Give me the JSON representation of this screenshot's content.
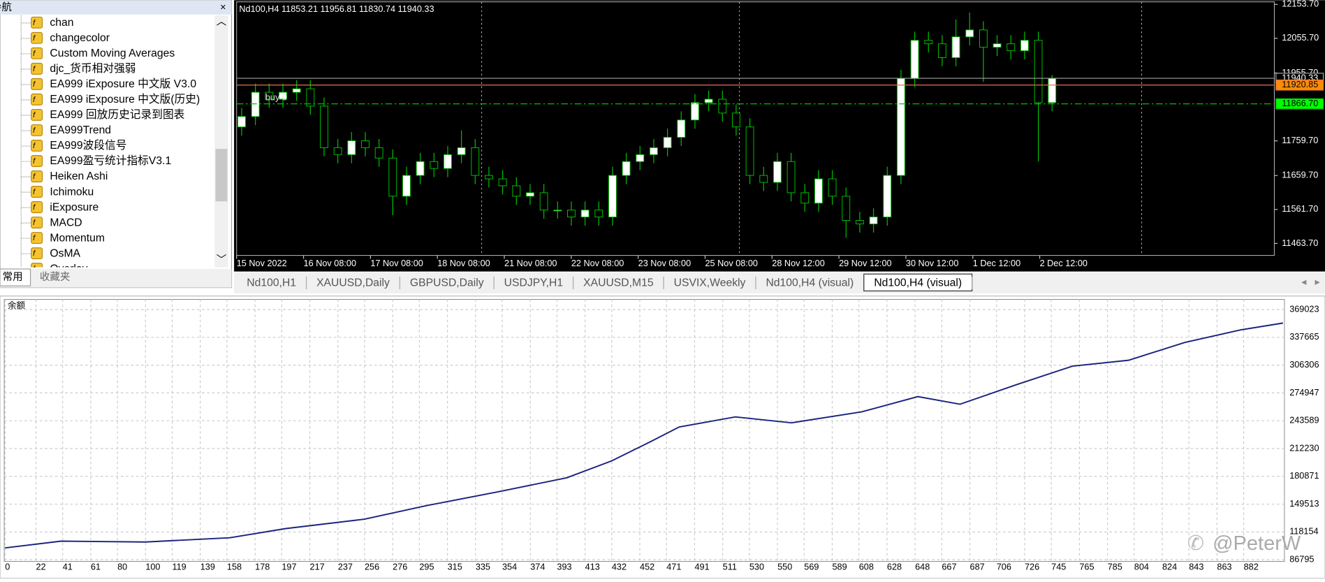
{
  "navigator": {
    "title": "导航",
    "items": [
      "chan",
      "changecolor",
      "Custom Moving Averages",
      "djc_货币相对强弱",
      "EA999 iExposure 中文版  V3.0",
      "EA999 iExposure 中文版(历史)",
      "EA999 回放历史记录到图表",
      "EA999Trend",
      "EA999波段信号",
      "EA999盈亏统计指标V3.1",
      "Heiken Ashi",
      "Ichimoku",
      "iExposure",
      "MACD",
      "Momentum",
      "OsMA",
      "Overlay"
    ],
    "tabs": [
      "常用",
      "收藏夹"
    ]
  },
  "chart_tabs": [
    "Nd100,H1",
    "XAUUSD,Daily",
    "GBPUSD,Daily",
    "USDJPY,H1",
    "XAUUSD,M15",
    "USVIX,Weekly",
    "Nd100,H4 (visual)",
    "Nd100,H4 (visual)"
  ],
  "watermark": "@PeterW",
  "chart_data": [
    {
      "type": "candlestick",
      "title": "Nd100,H4  11853.21 11956.81 11830.74 11940.33",
      "order_label": "buy 0",
      "up_color": "#ffffff",
      "down_color": "#000000",
      "wick_color": "#00c000",
      "ylim": [
        11429,
        12161
      ],
      "yticks": [
        {
          "value": 12153.7,
          "label": "12153.70"
        },
        {
          "value": 12055.7,
          "label": "12055.70"
        },
        {
          "value": 11955.7,
          "label": "11955.70"
        },
        {
          "value": 11759.7,
          "label": "11759.70"
        },
        {
          "value": 11659.7,
          "label": "11659.70"
        },
        {
          "value": 11561.7,
          "label": "11561.70"
        },
        {
          "value": 11463.7,
          "label": "11463.70"
        }
      ],
      "x_labels": [
        "15 Nov 2022",
        "16 Nov 08:00",
        "17 Nov 08:00",
        "18 Nov 08:00",
        "21 Nov 08:00",
        "22 Nov 08:00",
        "23 Nov 08:00",
        "25 Nov 08:00",
        "28 Nov 12:00",
        "29 Nov 12:00",
        "30 Nov 12:00",
        "1 Dec 12:00",
        "2 Dec 12:00"
      ],
      "levels": [
        {
          "value": 11940.33,
          "label": "11940.33",
          "color": "#a0a0a0",
          "label_bg": "#000000"
        },
        {
          "value": 11920.85,
          "label": "11920.85",
          "color": "#e07050",
          "label_bg": "#ff8c00"
        },
        {
          "value": 11866.7,
          "label": "11866.70",
          "color": "#00c000",
          "label_bg": "#00ff00"
        }
      ],
      "candles": [
        [
          11800,
          11855,
          11775,
          11830
        ],
        [
          11830,
          11925,
          11805,
          11900
        ],
        [
          11900,
          11925,
          11855,
          11880
        ],
        [
          11880,
          11925,
          11855,
          11900
        ],
        [
          11900,
          11935,
          11875,
          11910
        ],
        [
          11910,
          11935,
          11835,
          11860
        ],
        [
          11860,
          11885,
          11715,
          11740
        ],
        [
          11740,
          11765,
          11695,
          11720
        ],
        [
          11720,
          11785,
          11695,
          11760
        ],
        [
          11760,
          11785,
          11715,
          11740
        ],
        [
          11740,
          11765,
          11685,
          11710
        ],
        [
          11710,
          11735,
          11545,
          11600
        ],
        [
          11600,
          11685,
          11575,
          11660
        ],
        [
          11660,
          11725,
          11635,
          11700
        ],
        [
          11700,
          11725,
          11655,
          11680
        ],
        [
          11680,
          11745,
          11655,
          11720
        ],
        [
          11720,
          11790,
          11695,
          11740
        ],
        [
          11740,
          11765,
          11635,
          11660
        ],
        [
          11660,
          11685,
          11625,
          11650
        ],
        [
          11650,
          11675,
          11605,
          11630
        ],
        [
          11630,
          11655,
          11575,
          11600
        ],
        [
          11600,
          11635,
          11575,
          11610
        ],
        [
          11610,
          11635,
          11535,
          11560
        ],
        [
          11560,
          11585,
          11535,
          11560
        ],
        [
          11560,
          11585,
          11515,
          11540
        ],
        [
          11540,
          11585,
          11515,
          11560
        ],
        [
          11560,
          11585,
          11515,
          11540
        ],
        [
          11540,
          11685,
          11515,
          11660
        ],
        [
          11660,
          11725,
          11635,
          11700
        ],
        [
          11700,
          11745,
          11675,
          11720
        ],
        [
          11720,
          11765,
          11695,
          11740
        ],
        [
          11740,
          11795,
          11715,
          11770
        ],
        [
          11770,
          11845,
          11745,
          11820
        ],
        [
          11820,
          11895,
          11795,
          11870
        ],
        [
          11870,
          11905,
          11845,
          11880
        ],
        [
          11880,
          11905,
          11815,
          11840
        ],
        [
          11840,
          11865,
          11775,
          11800
        ],
        [
          11800,
          11825,
          11635,
          11660
        ],
        [
          11660,
          11685,
          11615,
          11640
        ],
        [
          11640,
          11725,
          11615,
          11700
        ],
        [
          11700,
          11725,
          11585,
          11610
        ],
        [
          11610,
          11635,
          11555,
          11580
        ],
        [
          11580,
          11675,
          11555,
          11650
        ],
        [
          11650,
          11675,
          11575,
          11600
        ],
        [
          11600,
          11625,
          11480,
          11530
        ],
        [
          11530,
          11555,
          11495,
          11520
        ],
        [
          11520,
          11565,
          11495,
          11540
        ],
        [
          11540,
          11685,
          11515,
          11660
        ],
        [
          11660,
          11965,
          11635,
          11940
        ],
        [
          11940,
          12075,
          11915,
          12050
        ],
        [
          12050,
          12075,
          12015,
          12040
        ],
        [
          12040,
          12065,
          11975,
          12000
        ],
        [
          12000,
          12110,
          11975,
          12060
        ],
        [
          12060,
          12130,
          12035,
          12080
        ],
        [
          12080,
          12105,
          11930,
          12030
        ],
        [
          12030,
          12065,
          12005,
          12040
        ],
        [
          12040,
          12065,
          11995,
          12020
        ],
        [
          12020,
          12075,
          11995,
          12050
        ],
        [
          12050,
          12075,
          11700,
          11870
        ],
        [
          11870,
          11950,
          11845,
          11940
        ]
      ]
    },
    {
      "type": "line",
      "title": "余额",
      "color": "#1a237e",
      "grid": true,
      "x": [
        0,
        40,
        100,
        160,
        200,
        256,
        300,
        350,
        400,
        432,
        460,
        480,
        520,
        560,
        610,
        650,
        680,
        720,
        760,
        800,
        840,
        880,
        910
      ],
      "values": [
        100150,
        107770,
        106810,
        111580,
        122000,
        132550,
        147800,
        163070,
        179270,
        198350,
        220280,
        236480,
        247920,
        241250,
        253650,
        270810,
        262230,
        284160,
        305140,
        311810,
        331840,
        346140,
        353760
      ],
      "xlim": [
        -0.6,
        911
      ],
      "ylim": [
        84888,
        380465
      ],
      "xticks": [
        0,
        22,
        41,
        61,
        80,
        100,
        119,
        139,
        158,
        178,
        197,
        217,
        237,
        256,
        276,
        295,
        315,
        335,
        354,
        374,
        393,
        413,
        432,
        452,
        471,
        491,
        511,
        530,
        550,
        569,
        589,
        608,
        628,
        648,
        667,
        687,
        706,
        726,
        745,
        765,
        785,
        804,
        824,
        843,
        863,
        882
      ],
      "yticks": [
        369023,
        337665,
        306306,
        274947,
        243589,
        212230,
        180871,
        149513,
        118154,
        86795
      ]
    }
  ]
}
